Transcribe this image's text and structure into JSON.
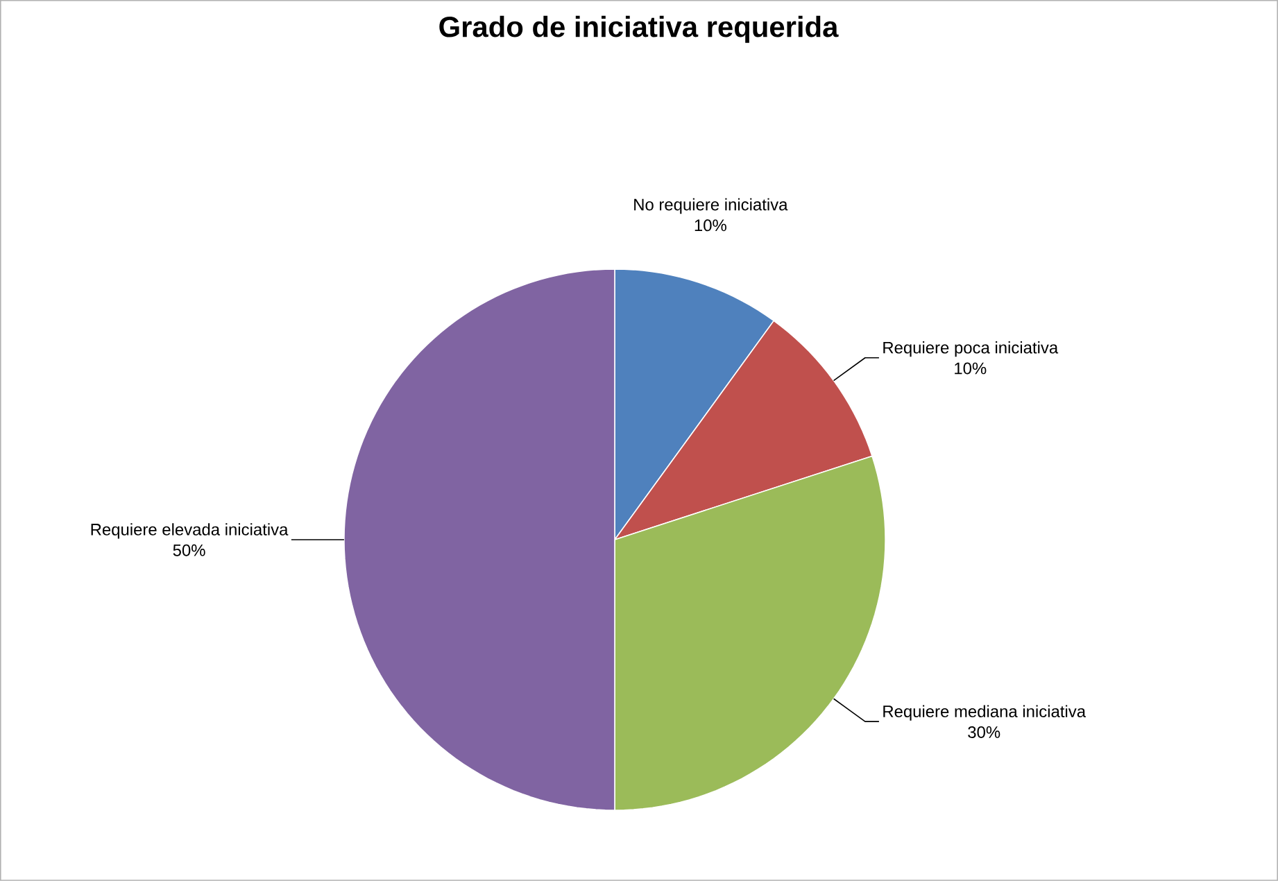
{
  "chart_data": {
    "type": "pie",
    "title": "Grado de iniciativa requerida",
    "categories": [
      "No requiere iniciativa",
      "Requiere poca iniciativa",
      "Requiere mediana iniciativa",
      "Requiere elevada iniciativa"
    ],
    "values": [
      10,
      10,
      30,
      50
    ],
    "value_labels": [
      "10%",
      "10%",
      "30%",
      "50%"
    ],
    "colors": [
      "#4f81bd",
      "#c0504d",
      "#9bbb59",
      "#8064a2"
    ]
  }
}
